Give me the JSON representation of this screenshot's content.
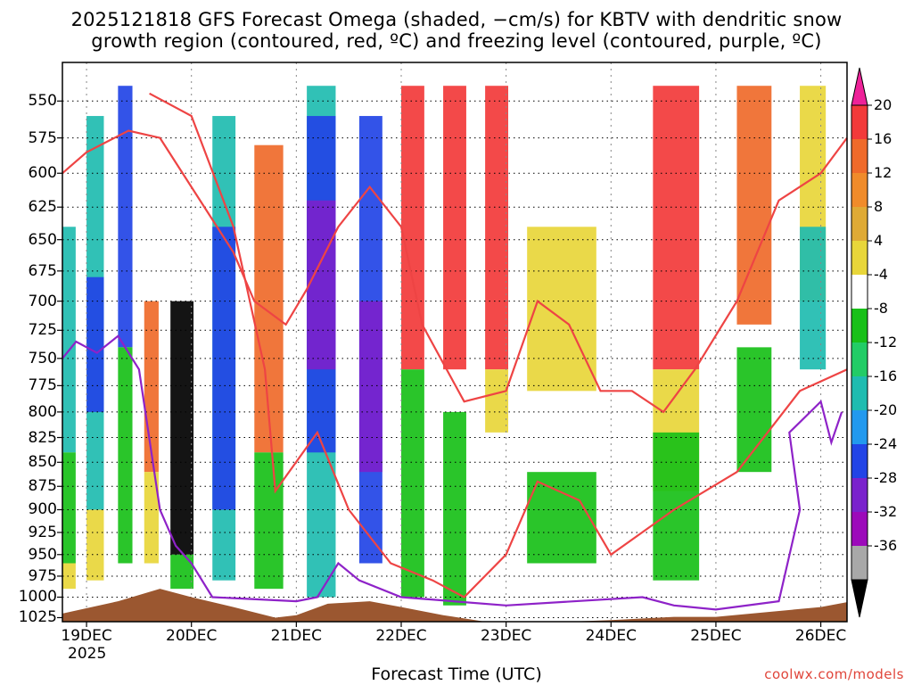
{
  "chart_data": {
    "type": "heatmap",
    "title": "2025121818 GFS Forecast Omega (shaded, −cm/s) for KBTV with dendritic snow",
    "subtitle": "growth region (contoured, red, ºC) and freezing level (contoured, purple, ºC)",
    "xlabel": "Forecast Time (UTC)",
    "ylabel": "",
    "x_ticks": [
      "19DEC",
      "20DEC",
      "21DEC",
      "22DEC",
      "23DEC",
      "24DEC",
      "25DEC",
      "26DEC"
    ],
    "x_year": "2025",
    "y_ticks": [
      550,
      575,
      600,
      625,
      650,
      675,
      700,
      725,
      750,
      775,
      800,
      825,
      850,
      875,
      900,
      925,
      950,
      975,
      1000,
      1025
    ],
    "ylim": [
      1030,
      525
    ],
    "y_scale": "log-pressure",
    "grid": true,
    "colorbar": {
      "levels": [
        20,
        16,
        12,
        8,
        4,
        -4,
        -8,
        -12,
        -16,
        -20,
        -24,
        -28,
        -32,
        -36
      ],
      "colors": [
        "#ee2299",
        "#f23a3a",
        "#ef6a2a",
        "#f08b2a",
        "#dfaa35",
        "#e8d63a",
        "#ffffff",
        "#18c018",
        "#22cc66",
        "#1fbcb0",
        "#2299ee",
        "#2244e6",
        "#7a22cc",
        "#9c0aba",
        "#a8a8a8",
        "#000000"
      ]
    },
    "series": [
      {
        "name": "Omega",
        "columns": [
          {
            "t": 18.77,
            "p": [
              [
                640,
                840,
                "ascent_med"
              ],
              [
                840,
                960,
                "ascent_weak"
              ],
              [
                960,
                990,
                "descent_weak"
              ]
            ]
          },
          {
            "t": 19.0,
            "p": [
              [
                560,
                900,
                "ascent_med"
              ],
              [
                680,
                800,
                "ascent_strong"
              ],
              [
                900,
                980,
                "descent_weak"
              ]
            ]
          },
          {
            "t": 19.3,
            "p": [
              [
                540,
                740,
                "ascent_strong"
              ],
              [
                740,
                960,
                "ascent_weak"
              ]
            ]
          },
          {
            "t": 19.55,
            "p": [
              [
                700,
                860,
                "descent_med"
              ],
              [
                860,
                960,
                "descent_weak"
              ]
            ]
          },
          {
            "t": 19.8,
            "p": [
              [
                700,
                950,
                "ascent_extreme"
              ],
              [
                950,
                990,
                "ascent_weak"
              ]
            ]
          },
          {
            "t": 20.2,
            "p": [
              [
                560,
                980,
                "ascent_med"
              ],
              [
                640,
                900,
                "ascent_strong"
              ]
            ]
          },
          {
            "t": 20.6,
            "p": [
              [
                580,
                840,
                "descent_med"
              ],
              [
                840,
                990,
                "ascent_weak"
              ]
            ]
          },
          {
            "t": 21.1,
            "p": [
              [
                540,
                1000,
                "ascent_med"
              ],
              [
                560,
                840,
                "ascent_strong"
              ],
              [
                620,
                760,
                "ascent_vstrong"
              ]
            ]
          },
          {
            "t": 21.6,
            "p": [
              [
                560,
                960,
                "ascent_strong"
              ],
              [
                700,
                860,
                "ascent_vstrong"
              ]
            ]
          },
          {
            "t": 22.0,
            "p": [
              [
                540,
                760,
                "descent_strong"
              ],
              [
                760,
                1000,
                "ascent_weak"
              ]
            ]
          },
          {
            "t": 22.4,
            "p": [
              [
                540,
                760,
                "descent_strong"
              ],
              [
                800,
                1010,
                "ascent_weak"
              ]
            ]
          },
          {
            "t": 22.8,
            "p": [
              [
                540,
                760,
                "descent_strong"
              ],
              [
                760,
                820,
                "descent_weak"
              ]
            ]
          },
          {
            "t": 23.2,
            "p": [
              [
                640,
                780,
                "descent_weak"
              ],
              [
                860,
                960,
                "ascent_weak"
              ]
            ]
          },
          {
            "t": 24.4,
            "p": [
              [
                540,
                760,
                "descent_strong"
              ],
              [
                760,
                880,
                "descent_weak"
              ],
              [
                820,
                980,
                "ascent_weak"
              ]
            ]
          },
          {
            "t": 25.2,
            "p": [
              [
                540,
                720,
                "descent_med"
              ],
              [
                740,
                860,
                "ascent_weak"
              ]
            ]
          },
          {
            "t": 25.8,
            "p": [
              [
                540,
                700,
                "descent_weak"
              ],
              [
                640,
                760,
                "ascent_med"
              ]
            ]
          }
        ]
      },
      {
        "name": "dendritic snow growth region -12",
        "points": [
          [
            18.77,
            600
          ],
          [
            19.0,
            585
          ],
          [
            19.4,
            570
          ],
          [
            19.7,
            575
          ],
          [
            20.0,
            610
          ],
          [
            20.4,
            660
          ],
          [
            20.6,
            700
          ],
          [
            20.9,
            720
          ],
          [
            21.1,
            690
          ],
          [
            21.4,
            640
          ],
          [
            21.7,
            610
          ],
          [
            22.0,
            640
          ],
          [
            22.2,
            720
          ],
          [
            22.6,
            790
          ],
          [
            23.0,
            780
          ],
          [
            23.3,
            700
          ],
          [
            23.6,
            720
          ],
          [
            23.9,
            780
          ],
          [
            24.2,
            780
          ],
          [
            24.5,
            800
          ],
          [
            24.8,
            760
          ],
          [
            25.2,
            700
          ],
          [
            25.6,
            620
          ],
          [
            26.0,
            600
          ],
          [
            26.25,
            575
          ]
        ]
      },
      {
        "name": "dendritic snow growth region -18",
        "points": [
          [
            19.6,
            545
          ],
          [
            20.0,
            560
          ],
          [
            20.4,
            640
          ],
          [
            20.7,
            760
          ],
          [
            20.8,
            880
          ],
          [
            21.2,
            820
          ],
          [
            21.5,
            900
          ],
          [
            21.9,
            960
          ],
          [
            22.3,
            980
          ],
          [
            22.6,
            1000
          ],
          [
            23.0,
            950
          ],
          [
            23.3,
            870
          ],
          [
            23.7,
            890
          ],
          [
            24.0,
            950
          ],
          [
            24.6,
            900
          ],
          [
            25.2,
            860
          ],
          [
            25.8,
            780
          ],
          [
            26.25,
            760
          ]
        ]
      },
      {
        "name": "freezing level 0",
        "points": [
          [
            18.77,
            750
          ],
          [
            18.9,
            735
          ],
          [
            19.1,
            745
          ],
          [
            19.3,
            730
          ],
          [
            19.5,
            760
          ],
          [
            19.7,
            900
          ],
          [
            19.85,
            940
          ],
          [
            20.0,
            960
          ],
          [
            20.2,
            1000
          ],
          [
            21.0,
            1005
          ],
          [
            21.2,
            1000
          ],
          [
            21.4,
            960
          ],
          [
            21.6,
            980
          ],
          [
            22.0,
            1000
          ],
          [
            23.0,
            1010
          ],
          [
            24.3,
            1000
          ],
          [
            24.6,
            1010
          ],
          [
            25.0,
            1015
          ],
          [
            25.6,
            1005
          ],
          [
            25.8,
            900
          ],
          [
            25.7,
            820
          ],
          [
            25.9,
            800
          ],
          [
            26.0,
            790
          ],
          [
            26.1,
            830
          ],
          [
            26.2,
            800
          ]
        ]
      }
    ]
  },
  "credit": "coolwx.com/models"
}
